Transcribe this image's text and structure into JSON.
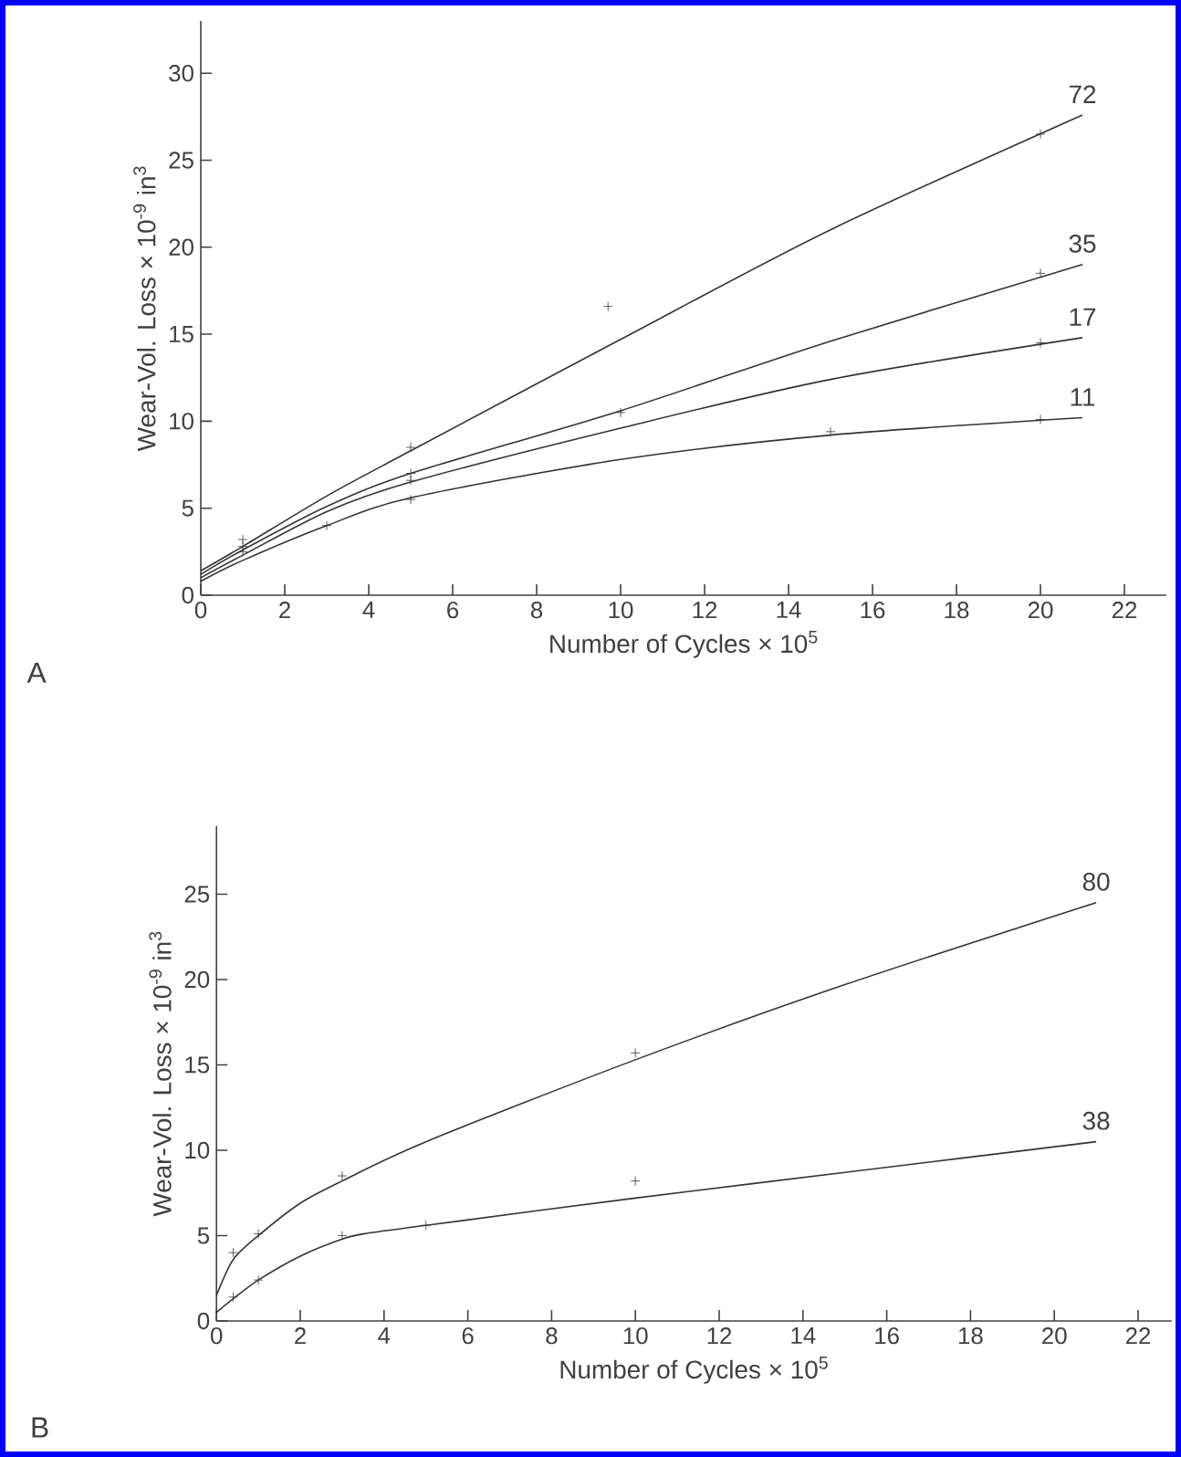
{
  "chart_data": [
    {
      "type": "line",
      "annotations": [
        "A"
      ],
      "xlabel": "Number of Cycles × 10$^{5}$",
      "ylabel": "Wear-Vol. Loss × 10$^{-9}$ in$^{3}$",
      "xlim": [
        0,
        23
      ],
      "xticks": [
        0,
        2,
        4,
        6,
        8,
        10,
        12,
        14,
        16,
        18,
        20,
        22
      ],
      "ylim": [
        0,
        33
      ],
      "yticks": [
        0,
        5,
        10,
        15,
        20,
        25,
        30
      ],
      "series": [
        {
          "name": "72",
          "color": "#333333",
          "marker": "none",
          "x": [
            0,
            1,
            3,
            5,
            10,
            15,
            21
          ],
          "values": [
            1.4,
            2.8,
            5.7,
            8.3,
            14.7,
            21,
            27.6
          ]
        },
        {
          "name": "35",
          "color": "#333333",
          "marker": "none",
          "x": [
            0,
            1,
            3,
            5,
            10,
            15,
            21
          ],
          "values": [
            1.2,
            2.6,
            5.1,
            7.0,
            10.6,
            14.6,
            19.0
          ]
        },
        {
          "name": "17",
          "color": "#333333",
          "marker": "none",
          "x": [
            0,
            1,
            3,
            5,
            10,
            15,
            21
          ],
          "values": [
            1.0,
            2.3,
            4.8,
            6.5,
            9.6,
            12.4,
            14.8
          ]
        },
        {
          "name": "11",
          "color": "#333333",
          "marker": "none",
          "x": [
            0,
            1,
            3,
            5,
            10,
            15,
            21
          ],
          "values": [
            0.8,
            2.0,
            4.0,
            5.6,
            7.8,
            9.2,
            10.2
          ]
        },
        {
          "type": "scatter",
          "color": "#333333",
          "marker": "cross",
          "x": [
            1,
            5,
            9.7,
            20,
            1,
            5,
            10,
            20,
            1,
            5,
            20,
            3,
            5,
            15,
            20
          ],
          "values": [
            3.2,
            8.5,
            16.6,
            26.5,
            2.8,
            7.0,
            10.5,
            18.5,
            2.5,
            6.6,
            14.5,
            4.0,
            5.5,
            9.4,
            10.1
          ]
        }
      ]
    },
    {
      "type": "line",
      "annotations": [
        "B"
      ],
      "xlabel": "Number of Cycles × 10$^{5}$",
      "ylabel": "Wear-Vol. Loss × 10$^{-9}$ in$^{3}$",
      "xlim": [
        0,
        22.8
      ],
      "xticks": [
        0,
        2,
        4,
        6,
        8,
        10,
        12,
        14,
        16,
        18,
        20,
        22
      ],
      "ylim": [
        0,
        29
      ],
      "yticks": [
        0,
        5,
        10,
        15,
        20,
        25
      ],
      "series": [
        {
          "name": "80",
          "color": "#333333",
          "marker": "none",
          "x": [
            0,
            0.4,
            1,
            2,
            3,
            5,
            10,
            15,
            21
          ],
          "values": [
            1.5,
            3.6,
            5.0,
            6.9,
            8.2,
            10.5,
            15.3,
            19.7,
            24.5
          ]
        },
        {
          "name": "38",
          "color": "#333333",
          "marker": "none",
          "x": [
            0,
            0.4,
            1,
            2,
            3,
            3.5,
            5,
            10,
            15,
            21
          ],
          "values": [
            0.5,
            1.3,
            2.4,
            3.8,
            4.8,
            5.1,
            5.6,
            7.2,
            8.7,
            10.5
          ]
        },
        {
          "type": "scatter",
          "color": "#333333",
          "marker": "cross",
          "x": [
            0.4,
            1,
            3,
            10,
            0.4,
            1,
            3,
            5,
            10
          ],
          "values": [
            4.0,
            5.1,
            8.5,
            15.7,
            1.4,
            2.4,
            5.0,
            5.6,
            8.2
          ]
        }
      ]
    }
  ]
}
